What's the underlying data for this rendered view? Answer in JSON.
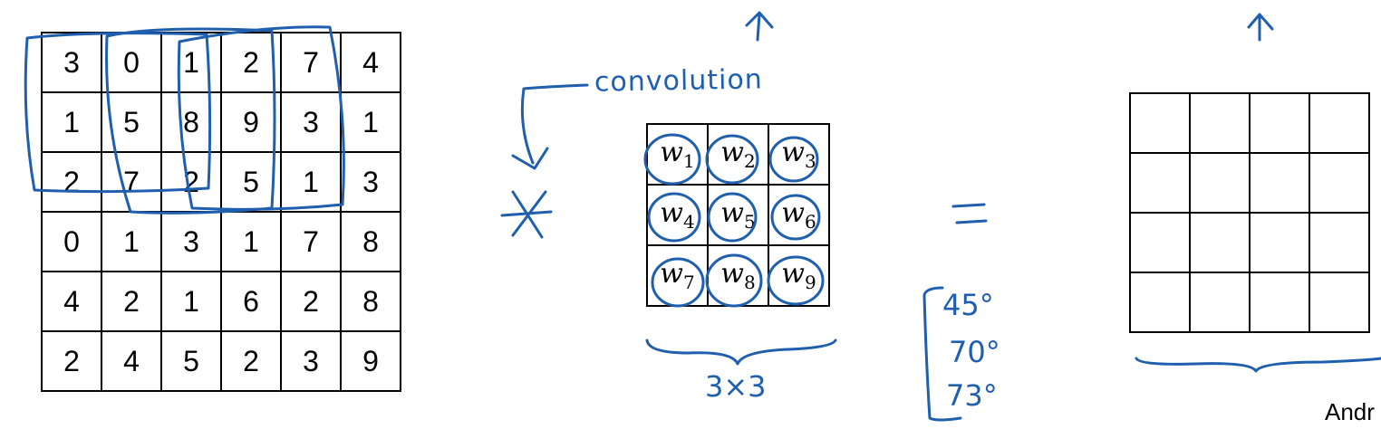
{
  "input_matrix": {
    "rows": [
      [
        "3",
        "0",
        "1",
        "2",
        "7",
        "4"
      ],
      [
        "1",
        "5",
        "8",
        "9",
        "3",
        "1"
      ],
      [
        "2",
        "7",
        "2",
        "5",
        "1",
        "3"
      ],
      [
        "0",
        "1",
        "3",
        "1",
        "7",
        "8"
      ],
      [
        "4",
        "2",
        "1",
        "6",
        "2",
        "8"
      ],
      [
        "2",
        "4",
        "5",
        "2",
        "3",
        "9"
      ]
    ]
  },
  "filter_matrix": {
    "symbol": "w",
    "rows": [
      [
        "1",
        "2",
        "3"
      ],
      [
        "4",
        "5",
        "6"
      ],
      [
        "7",
        "8",
        "9"
      ]
    ]
  },
  "annotations": {
    "convolution": "convolution",
    "filter_size": "3×3",
    "angles": [
      "45°",
      "70°",
      "73°"
    ]
  },
  "footer": {
    "author": "Andr"
  },
  "ink_color": "#1f5fae"
}
